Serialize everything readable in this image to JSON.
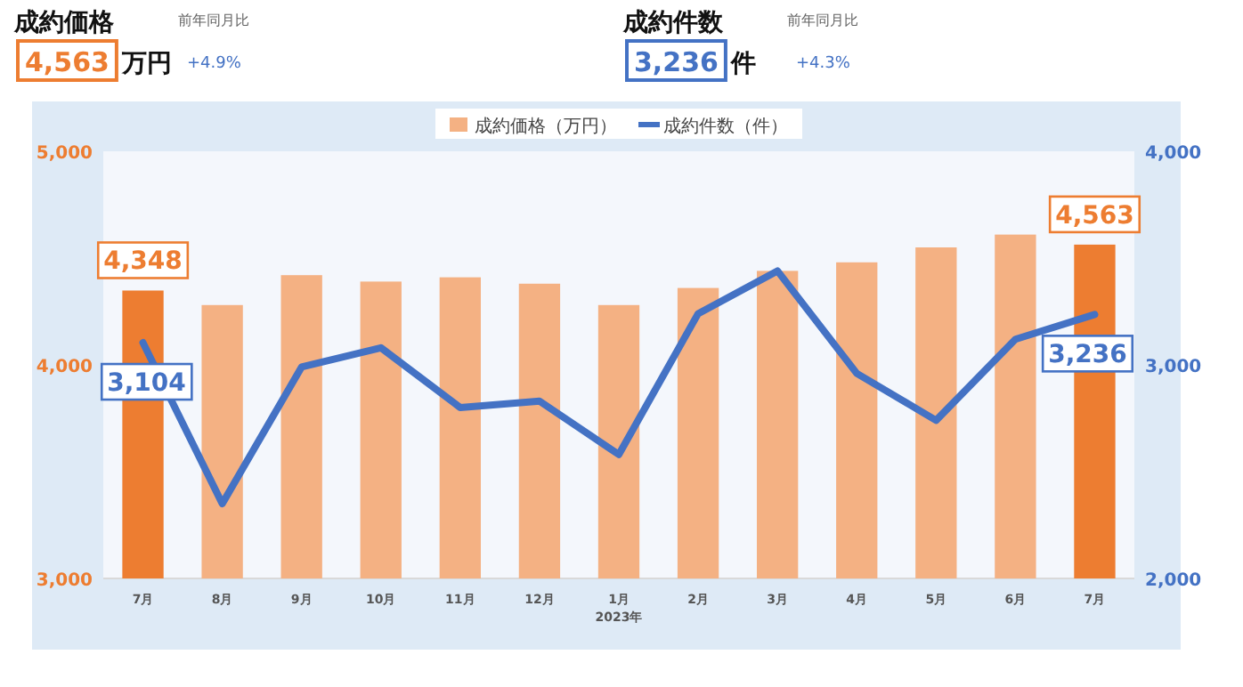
{
  "chart_data": {
    "type": "bar",
    "categories": [
      "7月",
      "8月",
      "9月",
      "10月",
      "11月",
      "12月",
      "1月",
      "2月",
      "3月",
      "4月",
      "5月",
      "6月",
      "7月"
    ],
    "series": [
      {
        "name": "成約価格（万円）",
        "color": "#f4b183",
        "colors": [
          "#ed7d31",
          "#f4b183",
          "#f4b183",
          "#f4b183",
          "#f4b183",
          "#f4b183",
          "#f4b183",
          "#f4b183",
          "#f4b183",
          "#f4b183",
          "#f4b183",
          "#f4b183",
          "#ed7d31"
        ],
        "values": [
          4348,
          4280,
          4420,
          4390,
          4410,
          4380,
          4280,
          4360,
          4440,
          4480,
          4550,
          4610,
          4563
        ],
        "value_labels": [
          "4,348",
          null,
          null,
          null,
          null,
          null,
          null,
          null,
          null,
          null,
          null,
          null,
          "4,563"
        ]
      },
      {
        "name": "成約件数（件）",
        "type": "line",
        "axis": "y2",
        "color": "#4472c4",
        "values": [
          3104,
          2350,
          2990,
          3080,
          2800,
          2830,
          2580,
          3240,
          3440,
          2960,
          2740,
          3120,
          3236
        ],
        "value_labels": [
          "3,104",
          null,
          null,
          null,
          null,
          null,
          null,
          null,
          null,
          null,
          null,
          null,
          "3,236"
        ]
      }
    ],
    "ylim": [
      3000,
      5000
    ],
    "yticks": [
      {
        "value": 3000,
        "label": "3,000"
      },
      {
        "value": 4000,
        "label": "4,000"
      },
      {
        "value": 5000,
        "label": "5,000"
      }
    ],
    "y2lim": [
      2000,
      4000
    ],
    "y2ticks": [
      {
        "value": 2000,
        "label": "2,000"
      },
      {
        "value": 3000,
        "label": "3,000"
      },
      {
        "value": 4000,
        "label": "4,000"
      }
    ],
    "legend": "top",
    "marker": "none",
    "grid": false,
    "annotations": [
      "成約価格",
      "4,563",
      "万円",
      "前年同月比",
      "+4.9%",
      "成約件数",
      "3,236",
      "件",
      "前年同月比",
      "+4.3%",
      "2023年"
    ]
  }
}
